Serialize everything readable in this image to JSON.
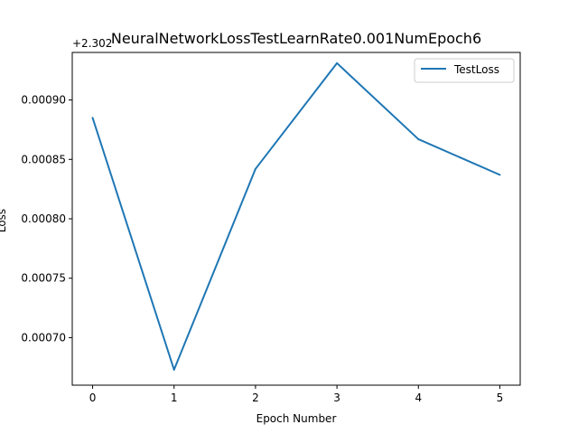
{
  "chart_data": {
    "type": "line",
    "title": "NeuralNetworkLossTestLearnRate0.001NumEpoch6",
    "xlabel": "Epoch Number",
    "ylabel": "Loss",
    "y_offset_text": "+2.302",
    "x": [
      0,
      1,
      2,
      3,
      4,
      5
    ],
    "x_ticks": [
      "0",
      "1",
      "2",
      "3",
      "4",
      "5"
    ],
    "y_ticks": [
      {
        "value": 0.0007,
        "label": "0.00070"
      },
      {
        "value": 0.00075,
        "label": "0.00075"
      },
      {
        "value": 0.0008,
        "label": "0.00080"
      },
      {
        "value": 0.00085,
        "label": "0.00085"
      },
      {
        "value": 0.0009,
        "label": "0.00090"
      }
    ],
    "xlim": [
      -0.25,
      5.25
    ],
    "ylim": [
      0.00066,
      0.00094
    ],
    "grid": false,
    "legend_position": "top-right",
    "series": [
      {
        "name": "TestLoss",
        "color": "#1f77b4",
        "values": [
          0.000885,
          0.000673,
          0.000842,
          0.000931,
          0.000867,
          0.000837
        ]
      }
    ]
  }
}
